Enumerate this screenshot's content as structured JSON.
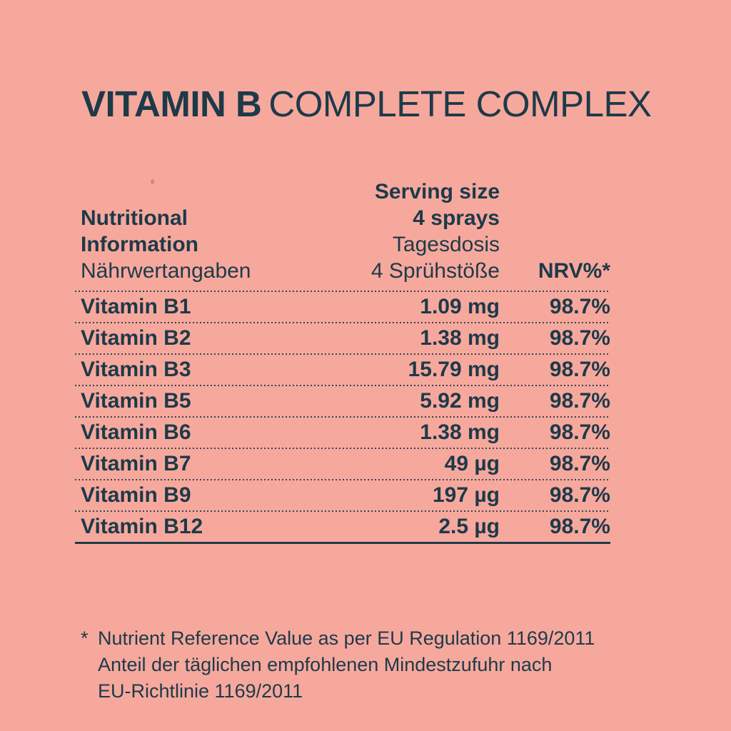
{
  "colors": {
    "background": "#f6a89d",
    "text": "#1d3a49",
    "speck": "#dd7a74"
  },
  "title": {
    "primary": "VITAMIN B",
    "secondary": "COMPLETE COMPLEX"
  },
  "table": {
    "product_column": {
      "line1": "Nutritional",
      "line2": "Information",
      "line3": "Nährwertangaben"
    },
    "serving_column": {
      "line1": "Serving size",
      "line2": "4 sprays",
      "line3": "Tagesdosis",
      "line4": "4 Sprühstöße"
    },
    "nrv_column_label": "NRV%*",
    "rows": [
      {
        "name": "Vitamin B1",
        "amount": "1.09 mg",
        "nrv": "98.7%"
      },
      {
        "name": "Vitamin B2",
        "amount": "1.38 mg",
        "nrv": "98.7%"
      },
      {
        "name": "Vitamin B3",
        "amount": "15.79 mg",
        "nrv": "98.7%"
      },
      {
        "name": "Vitamin B5",
        "amount": "5.92 mg",
        "nrv": "98.7%"
      },
      {
        "name": "Vitamin B6",
        "amount": "1.38 mg",
        "nrv": "98.7%"
      },
      {
        "name": "Vitamin B7",
        "amount": "49 µg",
        "nrv": "98.7%"
      },
      {
        "name": "Vitamin B9",
        "amount": "197 µg",
        "nrv": "98.7%"
      },
      {
        "name": "Vitamin B12",
        "amount": "2.5 µg",
        "nrv": "98.7%"
      }
    ]
  },
  "footnote": {
    "marker": "*",
    "lines": [
      "Nutrient Reference Value as per EU Regulation 1169/2011",
      "Anteil der täglichen empfohlenen Mindestzufuhr nach",
      "EU-Richtlinie 1169/2011"
    ]
  }
}
